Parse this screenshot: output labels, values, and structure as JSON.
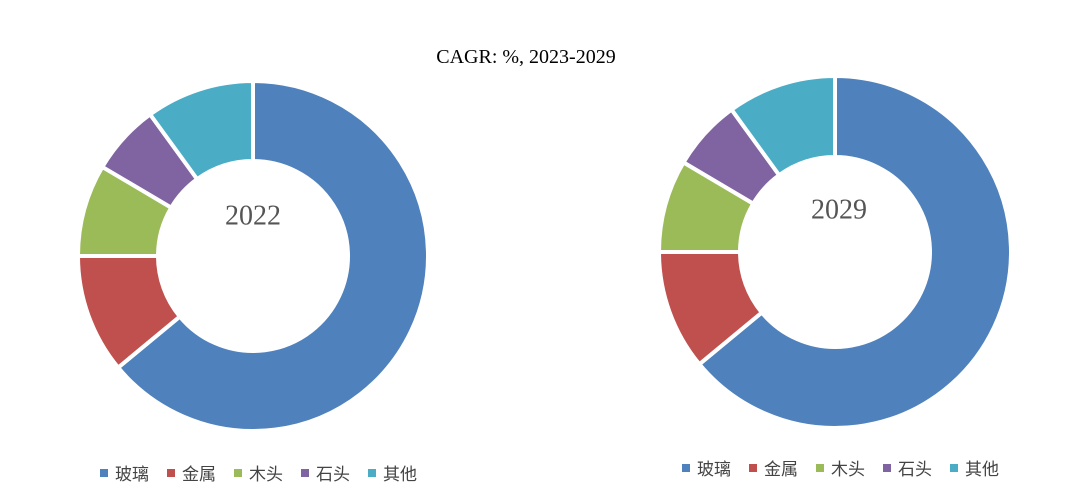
{
  "chart_data": [
    {
      "type": "pie",
      "donut": true,
      "center_label": "2022",
      "categories": [
        "玻璃",
        "金属",
        "木头",
        "石头",
        "其他"
      ],
      "values": [
        64,
        11,
        8.5,
        6.5,
        10
      ],
      "colors": [
        "#4F81BD",
        "#C0504D",
        "#9BBB59",
        "#8064A2",
        "#4BACC6"
      ],
      "legend_position": "bottom"
    },
    {
      "type": "pie",
      "donut": true,
      "center_label": "2029",
      "categories": [
        "玻璃",
        "金属",
        "木头",
        "石头",
        "其他"
      ],
      "values": [
        64,
        11,
        8.5,
        6.5,
        10
      ],
      "colors": [
        "#4F81BD",
        "#C0504D",
        "#9BBB59",
        "#8064A2",
        "#4BACC6"
      ],
      "legend_position": "bottom"
    }
  ],
  "title": "CAGR:    %, 2023-2029"
}
